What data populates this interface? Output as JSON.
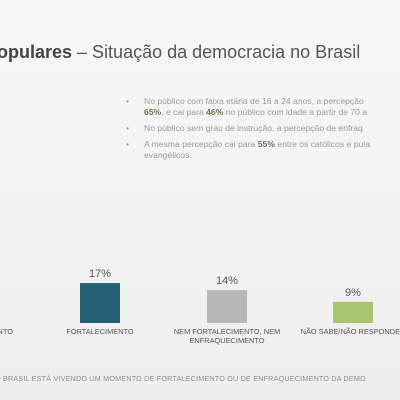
{
  "title": {
    "bold": "populares",
    "dash": " – ",
    "rest": "Situação da democracia no Brasil"
  },
  "bullets": [
    {
      "pre": "No público com faixa etária de 16 a 24 anos, a percepção",
      "b1": "65%",
      "mid": ", e cai para",
      "b2": "46%",
      "post": "no público com idade a partir de 70 a"
    },
    {
      "text": "No público sem grau de instrução, a percepção de enfraq"
    },
    {
      "pre": "A mesma percepção cai para",
      "b1": "55%",
      "post": "entre os católicos e pula",
      "line2": "evangélicos."
    }
  ],
  "colors": {
    "fortalecimento": "#245f72",
    "nem": "#b7b7b7",
    "nao_sabe": "#a9c46e"
  },
  "chart_data": {
    "type": "bar",
    "categories": [
      "ENFRAQUECIMENTO",
      "FORTALECIMENTO",
      "NEM FORTALECIMENTO, NEM ENFRAQUECIMENTO",
      "NÃO SABE/NÃO RESPONDEU"
    ],
    "category_labels_shown": [
      [
        "NTO"
      ],
      [
        "FORTALECIMENTO"
      ],
      [
        "NEM FORTALECIMENTO, NEM",
        "ENFRAQUECIMENTO"
      ],
      [
        "NÃO SABE/NÃO RESPONDEU"
      ]
    ],
    "values": [
      null,
      17,
      14,
      9
    ],
    "data_labels": [
      "",
      "17%",
      "14%",
      "9%"
    ],
    "bar_colors": [
      "#245f72",
      "#245f72",
      "#b7b7b7",
      "#a9c46e"
    ],
    "ylim": [
      0,
      20
    ],
    "grid": false
  },
  "footer": "O BRASIL ESTÁ VIVENDO UM MOMENTO DE FORTALECIMENTO OU DE ENFRAQUECIMENTO DA DEMO"
}
